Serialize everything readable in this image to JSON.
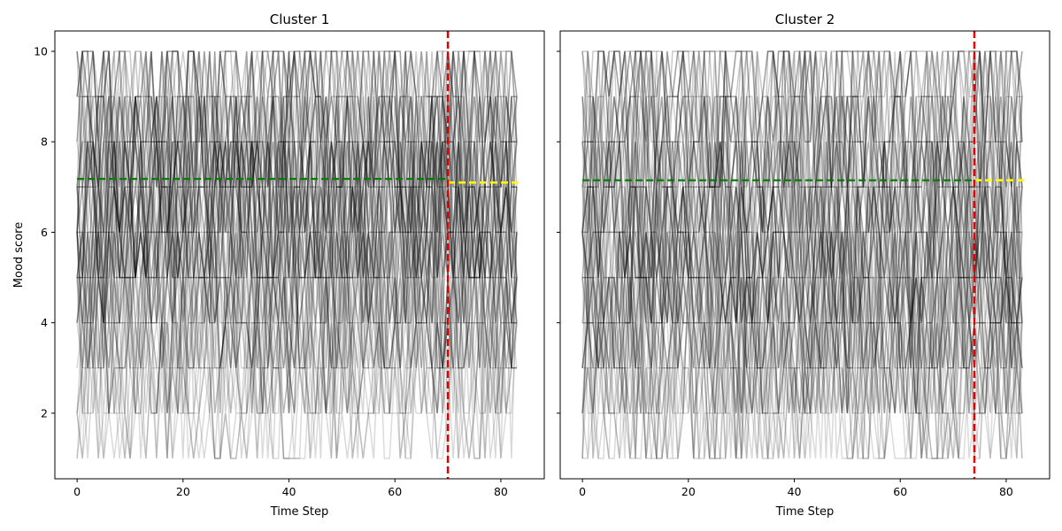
{
  "chart_data": [
    {
      "type": "line",
      "title": "Cluster 1",
      "xlabel": "Time Step",
      "ylabel": "Mood score",
      "xlim": [
        -4.2,
        88.2
      ],
      "ylim": [
        0.55,
        10.45
      ],
      "xticks": [
        0,
        20,
        40,
        60,
        80
      ],
      "yticks": [
        2,
        4,
        6,
        8,
        10
      ],
      "x_range": [
        0,
        83
      ],
      "values_domain": [
        1,
        10
      ],
      "split_line": {
        "x": 70,
        "color": "#e00000",
        "style": "dashed"
      },
      "mean_before": {
        "x": [
          0,
          70
        ],
        "y": 7.18,
        "color": "#007a00",
        "style": "dashed"
      },
      "mean_after": {
        "x": [
          70,
          84
        ],
        "y": 7.1,
        "color": "#ffff00",
        "style": "dashed"
      },
      "trace_color": "#000000",
      "legend": "none",
      "grid": false
    },
    {
      "type": "line",
      "title": "Cluster 2",
      "xlabel": "Time Step",
      "ylabel": "",
      "xlim": [
        -4.2,
        88.2
      ],
      "ylim": [
        0.55,
        10.45
      ],
      "xticks": [
        0,
        20,
        40,
        60,
        80
      ],
      "yticks": [
        2,
        4,
        6,
        8,
        10
      ],
      "x_range": [
        0,
        83
      ],
      "values_domain": [
        1,
        10
      ],
      "split_line": {
        "x": 74,
        "color": "#e00000",
        "style": "dashed"
      },
      "mean_before": {
        "x": [
          0,
          74
        ],
        "y": 7.15,
        "color": "#007a00",
        "style": "dashed"
      },
      "mean_after": {
        "x": [
          74,
          84
        ],
        "y": 7.15,
        "color": "#ffff00",
        "style": "dashed"
      },
      "trace_color": "#000000",
      "legend": "none",
      "grid": false
    }
  ]
}
